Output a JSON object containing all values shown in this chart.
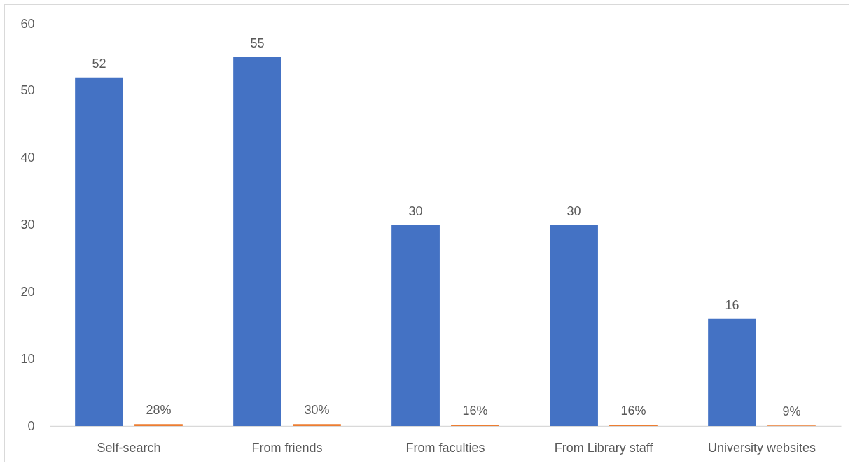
{
  "chart_data": {
    "type": "bar",
    "categories": [
      "Self-search",
      "From friends",
      "From faculties",
      "From Library staff",
      "University websites"
    ],
    "series": [
      {
        "color": "#4472c4",
        "values": [
          52,
          55,
          30,
          30,
          16
        ],
        "value_labels": [
          "52",
          "55",
          "30",
          "30",
          "16"
        ]
      },
      {
        "color": "#ed7d31",
        "values": [
          0.28,
          0.3,
          0.16,
          0.16,
          0.09
        ],
        "value_labels": [
          "28%",
          "30%",
          "16%",
          "16%",
          "9%"
        ]
      }
    ],
    "ylim": [
      0,
      60
    ],
    "yticks": [
      0,
      10,
      20,
      30,
      40,
      50,
      60
    ],
    "grid": false,
    "legend": false
  }
}
